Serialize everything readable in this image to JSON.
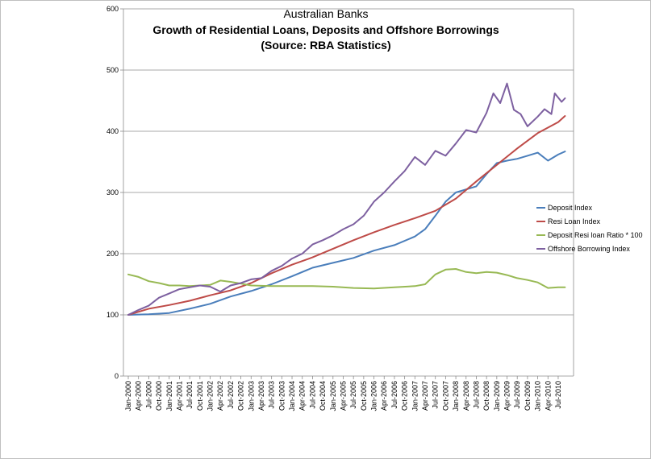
{
  "chart_data": {
    "type": "line",
    "title_lines": [
      "Australian Banks",
      "Growth of Residential Loans, Deposits and Offshore Borrowings",
      "(Source: RBA Statistics)"
    ],
    "xlabel": "",
    "ylabel": "",
    "ylim": [
      0,
      600
    ],
    "y_ticks": [
      "0",
      "100",
      "200",
      "300",
      "400",
      "500",
      "600"
    ],
    "grid": "horizontal",
    "legend_position": "right",
    "x_ticks": [
      "Jan-2000",
      "Apr-2000",
      "Jul-2000",
      "Oct-2000",
      "Jan-2001",
      "Apr-2001",
      "Jul-2001",
      "Oct-2001",
      "Jan-2002",
      "Apr-2002",
      "Jul-2002",
      "Oct-2002",
      "Jan-2003",
      "Apr-2003",
      "Jul-2003",
      "Oct-2003",
      "Jan-2004",
      "Apr-2004",
      "Jul-2004",
      "Oct-2004",
      "Jan-2005",
      "Apr-2005",
      "Jul-2005",
      "Oct-2005",
      "Jan-2006",
      "Apr-2006",
      "Jul-2006",
      "Oct-2006",
      "Jan-2007",
      "Apr-2007",
      "Jul-2007",
      "Oct-2007",
      "Jan-2008",
      "Apr-2008",
      "Jul-2008",
      "Oct-2008",
      "Jan-2009",
      "Apr-2009",
      "Jul-2009",
      "Oct-2009",
      "Jan-2010",
      "Apr-2010",
      "Jul-2010"
    ],
    "series": [
      {
        "name": "Deposit Index",
        "color": "#4a7ebb",
        "points": [
          [
            "Jan-2000",
            100
          ],
          [
            "Jul-2000",
            101
          ],
          [
            "Jan-2001",
            103
          ],
          [
            "Jul-2001",
            110
          ],
          [
            "Jan-2002",
            118
          ],
          [
            "Jul-2002",
            130
          ],
          [
            "Jan-2003",
            139
          ],
          [
            "Jul-2003",
            150
          ],
          [
            "Jan-2004",
            163
          ],
          [
            "Jul-2004",
            177
          ],
          [
            "Jan-2005",
            185
          ],
          [
            "Jul-2005",
            193
          ],
          [
            "Jan-2006",
            205
          ],
          [
            "Jul-2006",
            214
          ],
          [
            "Jan-2007",
            228
          ],
          [
            "Apr-2007",
            240
          ],
          [
            "Jul-2007",
            262
          ],
          [
            "Oct-2007",
            285
          ],
          [
            "Jan-2008",
            300
          ],
          [
            "Jul-2008",
            310
          ],
          [
            "Oct-2008",
            330
          ],
          [
            "Jan-2009",
            348
          ],
          [
            "Apr-2009",
            352
          ],
          [
            "Jul-2009",
            355
          ],
          [
            "Oct-2009",
            360
          ],
          [
            "Jan-2010",
            365
          ],
          [
            "Apr-2010",
            352
          ],
          [
            "Jul-2010",
            362
          ],
          [
            "Sep-2010",
            367
          ]
        ]
      },
      {
        "name": "Resi Loan Index",
        "color": "#be4b48",
        "points": [
          [
            "Jan-2000",
            100
          ],
          [
            "Jul-2000",
            110
          ],
          [
            "Jan-2001",
            116
          ],
          [
            "Jul-2001",
            123
          ],
          [
            "Jan-2002",
            132
          ],
          [
            "Jul-2002",
            140
          ],
          [
            "Jan-2003",
            152
          ],
          [
            "Jul-2003",
            168
          ],
          [
            "Jan-2004",
            182
          ],
          [
            "Jul-2004",
            194
          ],
          [
            "Jan-2005",
            208
          ],
          [
            "Jul-2005",
            222
          ],
          [
            "Jan-2006",
            235
          ],
          [
            "Jul-2006",
            247
          ],
          [
            "Jan-2007",
            258
          ],
          [
            "Jul-2007",
            270
          ],
          [
            "Jan-2008",
            290
          ],
          [
            "Jul-2008",
            318
          ],
          [
            "Jan-2009",
            345
          ],
          [
            "Jul-2009",
            372
          ],
          [
            "Jan-2010",
            397
          ],
          [
            "Jul-2010",
            415
          ],
          [
            "Sep-2010",
            425
          ]
        ]
      },
      {
        "name": "Deposit Resi loan Ratio * 100",
        "color": "#98b954",
        "points": [
          [
            "Jan-2000",
            166
          ],
          [
            "Apr-2000",
            162
          ],
          [
            "Jul-2000",
            155
          ],
          [
            "Oct-2000",
            152
          ],
          [
            "Jan-2001",
            148
          ],
          [
            "Apr-2001",
            148
          ],
          [
            "Jul-2001",
            147
          ],
          [
            "Oct-2001",
            148
          ],
          [
            "Jan-2002",
            149
          ],
          [
            "Apr-2002",
            156
          ],
          [
            "Jul-2002",
            154
          ],
          [
            "Oct-2002",
            151
          ],
          [
            "Jan-2003",
            148
          ],
          [
            "Jul-2003",
            147
          ],
          [
            "Jan-2004",
            147
          ],
          [
            "Jul-2004",
            147
          ],
          [
            "Jan-2005",
            146
          ],
          [
            "Jul-2005",
            144
          ],
          [
            "Jan-2006",
            143
          ],
          [
            "Jul-2006",
            145
          ],
          [
            "Jan-2007",
            147
          ],
          [
            "Apr-2007",
            150
          ],
          [
            "Jul-2007",
            166
          ],
          [
            "Oct-2007",
            174
          ],
          [
            "Jan-2008",
            175
          ],
          [
            "Apr-2008",
            170
          ],
          [
            "Jul-2008",
            168
          ],
          [
            "Oct-2008",
            170
          ],
          [
            "Jan-2009",
            169
          ],
          [
            "Apr-2009",
            165
          ],
          [
            "Jul-2009",
            160
          ],
          [
            "Oct-2009",
            157
          ],
          [
            "Jan-2010",
            153
          ],
          [
            "Apr-2010",
            144
          ],
          [
            "Jul-2010",
            145
          ],
          [
            "Sep-2010",
            145
          ]
        ]
      },
      {
        "name": "Offshore Borrowing Index",
        "color": "#7d60a0",
        "points": [
          [
            "Jan-2000",
            100
          ],
          [
            "Apr-2000",
            108
          ],
          [
            "Jul-2000",
            115
          ],
          [
            "Oct-2000",
            128
          ],
          [
            "Jan-2001",
            135
          ],
          [
            "Apr-2001",
            142
          ],
          [
            "Jul-2001",
            145
          ],
          [
            "Oct-2001",
            148
          ],
          [
            "Jan-2002",
            146
          ],
          [
            "Apr-2002",
            138
          ],
          [
            "Jul-2002",
            148
          ],
          [
            "Oct-2002",
            152
          ],
          [
            "Jan-2003",
            158
          ],
          [
            "Apr-2003",
            160
          ],
          [
            "Jul-2003",
            172
          ],
          [
            "Oct-2003",
            180
          ],
          [
            "Jan-2004",
            192
          ],
          [
            "Apr-2004",
            200
          ],
          [
            "Jul-2004",
            215
          ],
          [
            "Oct-2004",
            222
          ],
          [
            "Jan-2005",
            230
          ],
          [
            "Apr-2005",
            240
          ],
          [
            "Jul-2005",
            248
          ],
          [
            "Oct-2005",
            262
          ],
          [
            "Jan-2006",
            285
          ],
          [
            "Apr-2006",
            300
          ],
          [
            "Jul-2006",
            318
          ],
          [
            "Oct-2006",
            335
          ],
          [
            "Jan-2007",
            358
          ],
          [
            "Apr-2007",
            345
          ],
          [
            "Jul-2007",
            368
          ],
          [
            "Oct-2007",
            360
          ],
          [
            "Jan-2008",
            380
          ],
          [
            "Apr-2008",
            402
          ],
          [
            "Jul-2008",
            398
          ],
          [
            "Oct-2008",
            430
          ],
          [
            "Dec-2008",
            462
          ],
          [
            "Feb-2009",
            446
          ],
          [
            "Apr-2009",
            478
          ],
          [
            "Jun-2009",
            435
          ],
          [
            "Aug-2009",
            428
          ],
          [
            "Oct-2009",
            408
          ],
          [
            "Jan-2010",
            424
          ],
          [
            "Mar-2010",
            436
          ],
          [
            "May-2010",
            428
          ],
          [
            "Jun-2010",
            462
          ],
          [
            "Aug-2010",
            448
          ],
          [
            "Sep-2010",
            454
          ]
        ]
      }
    ]
  }
}
